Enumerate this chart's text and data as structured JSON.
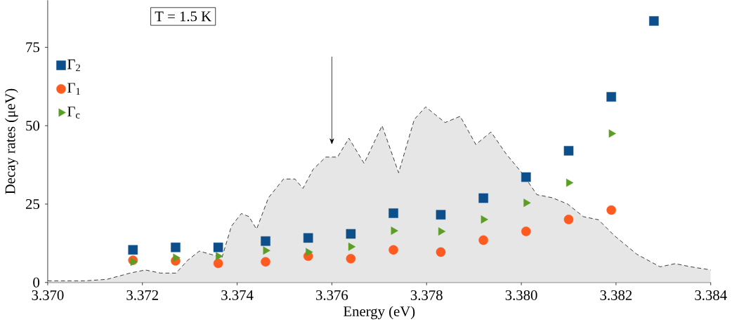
{
  "chart_data": {
    "type": "scatter",
    "xlabel": "Energy (eV)",
    "ylabel": "Decay rates (μeV)",
    "annotations": [
      "T = 1.5 K"
    ],
    "xlim": [
      3.37,
      3.384
    ],
    "ylim": [
      0,
      90
    ],
    "xticks": [
      {
        "value": 3.37,
        "label": "3.370"
      },
      {
        "value": 3.372,
        "label": "3.372"
      },
      {
        "value": 3.374,
        "label": "3.374"
      },
      {
        "value": 3.376,
        "label": "3.376"
      },
      {
        "value": 3.378,
        "label": "3.378"
      },
      {
        "value": 3.38,
        "label": "3.380"
      },
      {
        "value": 3.382,
        "label": "3.382"
      },
      {
        "value": 3.384,
        "label": "3.384"
      }
    ],
    "yticks": [
      0,
      25,
      50,
      75
    ],
    "legend": "top left",
    "grid": false,
    "series": [
      {
        "type": "area",
        "color": "#e6e6e6",
        "line_style": "dashed",
        "x": [
          3.37,
          3.37076,
          3.37125,
          3.37174,
          3.37206,
          3.37238,
          3.37271,
          3.37295,
          3.3732,
          3.37344,
          3.37368,
          3.37388,
          3.37409,
          3.37425,
          3.37441,
          3.37466,
          3.37498,
          3.37522,
          3.37539,
          3.3756,
          3.37587,
          3.37612,
          3.37636,
          3.37668,
          3.37706,
          3.37741,
          3.37774,
          3.37798,
          3.37839,
          3.37871,
          3.37904,
          3.37936,
          3.37968,
          3.38001,
          3.38033,
          3.38066,
          3.38098,
          3.38131,
          3.38163,
          3.38196,
          3.38244,
          3.38293,
          3.38325,
          3.38358,
          3.384
        ],
        "values": [
          0.5,
          0.5,
          1,
          3,
          4,
          3,
          3,
          7,
          10,
          9,
          8,
          18,
          22,
          21,
          17,
          27,
          33,
          33,
          30,
          36,
          40,
          40,
          46,
          38,
          50,
          35,
          52,
          56,
          51,
          53,
          44,
          48,
          41,
          35,
          28,
          27,
          25,
          21,
          20,
          15,
          9,
          5,
          6,
          5,
          4
        ]
      },
      {
        "name": "Γ$_{2}$",
        "color": "#0d4f8b",
        "marker": "square",
        "x": [
          3.3718,
          3.3727,
          3.3736,
          3.3746,
          3.3755,
          3.3764,
          3.3773,
          3.3783,
          3.3792,
          3.3801,
          3.381,
          3.3819,
          3.3828
        ],
        "values": [
          10.4,
          11.2,
          11.2,
          13.2,
          14.2,
          15.5,
          22.1,
          21.6,
          26.9,
          33.6,
          42.0,
          59.2,
          83.4
        ]
      },
      {
        "name": "Γ$_{1}$",
        "color": "#ff5a1f",
        "marker": "circle",
        "x": [
          3.3718,
          3.3727,
          3.3736,
          3.3746,
          3.3755,
          3.3764,
          3.3773,
          3.3783,
          3.3792,
          3.3801,
          3.381,
          3.3819
        ],
        "values": [
          7.1,
          6.9,
          6.1,
          6.6,
          8.4,
          7.6,
          10.4,
          9.7,
          13.5,
          16.3,
          20.1,
          23.1
        ]
      },
      {
        "name": "Γ$_{c}$",
        "color": "#5b9e24",
        "marker": "triangle",
        "x": [
          3.3718,
          3.3727,
          3.3736,
          3.3746,
          3.3755,
          3.3764,
          3.3773,
          3.3783,
          3.3792,
          3.3801,
          3.381,
          3.3819
        ],
        "values": [
          6.6,
          7.9,
          8.4,
          10.2,
          9.7,
          11.4,
          16.5,
          16.3,
          20.1,
          25.4,
          31.8,
          47.5
        ]
      }
    ]
  }
}
